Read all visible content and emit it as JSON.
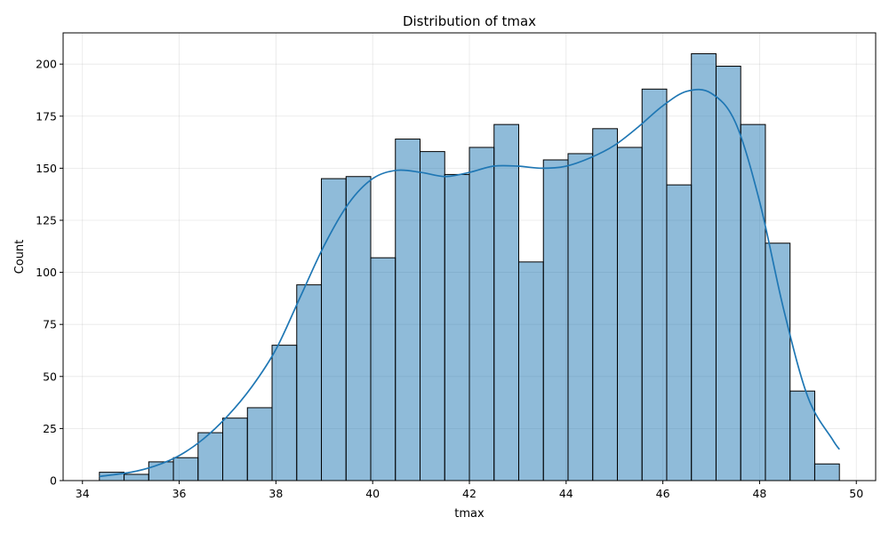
{
  "chart_data": {
    "type": "bar",
    "title": "Distribution of tmax",
    "xlabel": "tmax",
    "ylabel": "Count",
    "xlim": [
      33.6,
      50.4
    ],
    "ylim": [
      0,
      215
    ],
    "xticks": [
      34,
      36,
      38,
      40,
      42,
      44,
      46,
      48,
      50
    ],
    "yticks": [
      0,
      25,
      50,
      75,
      100,
      125,
      150,
      175,
      200
    ],
    "grid": true,
    "bins": {
      "start": 34.35,
      "width": 0.51,
      "counts": [
        4,
        3,
        9,
        11,
        23,
        30,
        35,
        65,
        94,
        145,
        146,
        107,
        164,
        158,
        147,
        160,
        171,
        105,
        154,
        157,
        169,
        160,
        188,
        142,
        205,
        199,
        171,
        114,
        43,
        8
      ]
    },
    "kde": {
      "x": [
        34.35,
        35.0,
        35.5,
        36.0,
        36.5,
        37.0,
        37.5,
        38.0,
        38.5,
        39.0,
        39.5,
        40.0,
        40.5,
        41.0,
        41.5,
        42.0,
        42.5,
        43.0,
        43.5,
        44.0,
        44.5,
        45.0,
        45.5,
        46.0,
        46.5,
        47.0,
        47.5,
        48.0,
        48.5,
        49.0,
        49.5,
        49.65
      ],
      "y": [
        2,
        4,
        7,
        12,
        20,
        31,
        45,
        63,
        88,
        113,
        133,
        145,
        149,
        148,
        146,
        148,
        151,
        151,
        150,
        151,
        155,
        161,
        170,
        180,
        187,
        186,
        172,
        134,
        82,
        40,
        20,
        15
      ]
    },
    "colors": {
      "bar_fill": "#1f77b4",
      "bar_edge": "#000000",
      "kde": "#1f77b4"
    }
  }
}
